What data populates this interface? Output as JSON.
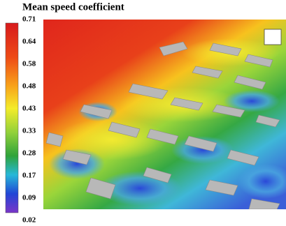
{
  "title": "Mean speed coefficient",
  "legend": {
    "ticks": [
      "0.71",
      "0.64",
      "0.58",
      "0.48",
      "0.43",
      "0.33",
      "0.28",
      "0.17",
      "0.09",
      "0.02"
    ]
  }
}
